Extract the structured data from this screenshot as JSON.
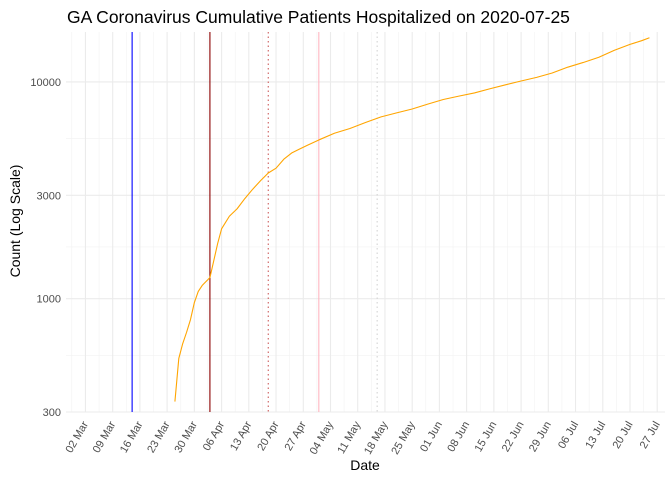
{
  "chart_data": {
    "type": "line",
    "title": "GA Coronavirus Cumulative Patients Hospitalized on 2020-07-25",
    "xlabel": "Date",
    "ylabel": "Count (Log Scale)",
    "y_scale": "log",
    "ylim": [
      300,
      17000
    ],
    "xlim": [
      "2020-02-26",
      "2020-07-29"
    ],
    "y_ticks": [
      300,
      1000,
      3000,
      10000
    ],
    "y_tick_labels": [
      "300",
      "1000",
      "3000",
      "10000"
    ],
    "x_ticks": [
      "2020-03-02",
      "2020-03-09",
      "2020-03-16",
      "2020-03-23",
      "2020-03-30",
      "2020-04-06",
      "2020-04-13",
      "2020-04-20",
      "2020-04-27",
      "2020-05-04",
      "2020-05-11",
      "2020-05-18",
      "2020-05-25",
      "2020-06-01",
      "2020-06-08",
      "2020-06-15",
      "2020-06-22",
      "2020-06-29",
      "2020-07-06",
      "2020-07-13",
      "2020-07-20",
      "2020-07-27"
    ],
    "x_tick_labels": [
      "02 Mar",
      "09 Mar",
      "16 Mar",
      "23 Mar",
      "30 Mar",
      "06 Apr",
      "13 Apr",
      "20 Apr",
      "27 Apr",
      "04 May",
      "11 May",
      "18 May",
      "25 May",
      "01 Jun",
      "08 Jun",
      "15 Jun",
      "22 Jun",
      "29 Jun",
      "06 Jul",
      "13 Jul",
      "20 Jul",
      "27 Jul"
    ],
    "grid": true,
    "legend": "none",
    "series": [
      {
        "color": "#FFA500",
        "x": [
          "2020-03-25",
          "2020-03-26",
          "2020-03-27",
          "2020-03-28",
          "2020-03-29",
          "2020-03-30",
          "2020-03-31",
          "2020-04-01",
          "2020-04-02",
          "2020-04-03",
          "2020-04-04",
          "2020-04-05",
          "2020-04-06",
          "2020-04-08",
          "2020-04-10",
          "2020-04-12",
          "2020-04-14",
          "2020-04-16",
          "2020-04-18",
          "2020-04-20",
          "2020-04-22",
          "2020-04-24",
          "2020-04-26",
          "2020-04-28",
          "2020-05-01",
          "2020-05-05",
          "2020-05-09",
          "2020-05-13",
          "2020-05-17",
          "2020-05-21",
          "2020-05-25",
          "2020-05-29",
          "2020-06-02",
          "2020-06-06",
          "2020-06-10",
          "2020-06-14",
          "2020-06-18",
          "2020-06-22",
          "2020-06-26",
          "2020-06-30",
          "2020-07-04",
          "2020-07-08",
          "2020-07-12",
          "2020-07-16",
          "2020-07-20",
          "2020-07-23",
          "2020-07-25"
        ],
        "values": [
          335,
          530,
          620,
          700,
          800,
          960,
          1080,
          1150,
          1200,
          1250,
          1500,
          1800,
          2100,
          2400,
          2600,
          2900,
          3200,
          3500,
          3800,
          4000,
          4400,
          4700,
          4900,
          5100,
          5400,
          5800,
          6100,
          6500,
          6900,
          7200,
          7500,
          7900,
          8300,
          8600,
          8900,
          9300,
          9700,
          10100,
          10500,
          11000,
          11700,
          12300,
          13000,
          14000,
          14900,
          15500,
          16000
        ]
      }
    ],
    "vlines": [
      {
        "x": "2020-03-14",
        "color": "#0000FF",
        "style": "solid"
      },
      {
        "x": "2020-04-03",
        "color": "#8B0000",
        "style": "solid"
      },
      {
        "x": "2020-04-18",
        "color": "#CD5C5C",
        "style": "dotted"
      },
      {
        "x": "2020-05-01",
        "color": "#FFB6C1",
        "style": "solid"
      },
      {
        "x": "2020-05-16",
        "color": "#D3D3D3",
        "style": "dotted"
      }
    ]
  }
}
